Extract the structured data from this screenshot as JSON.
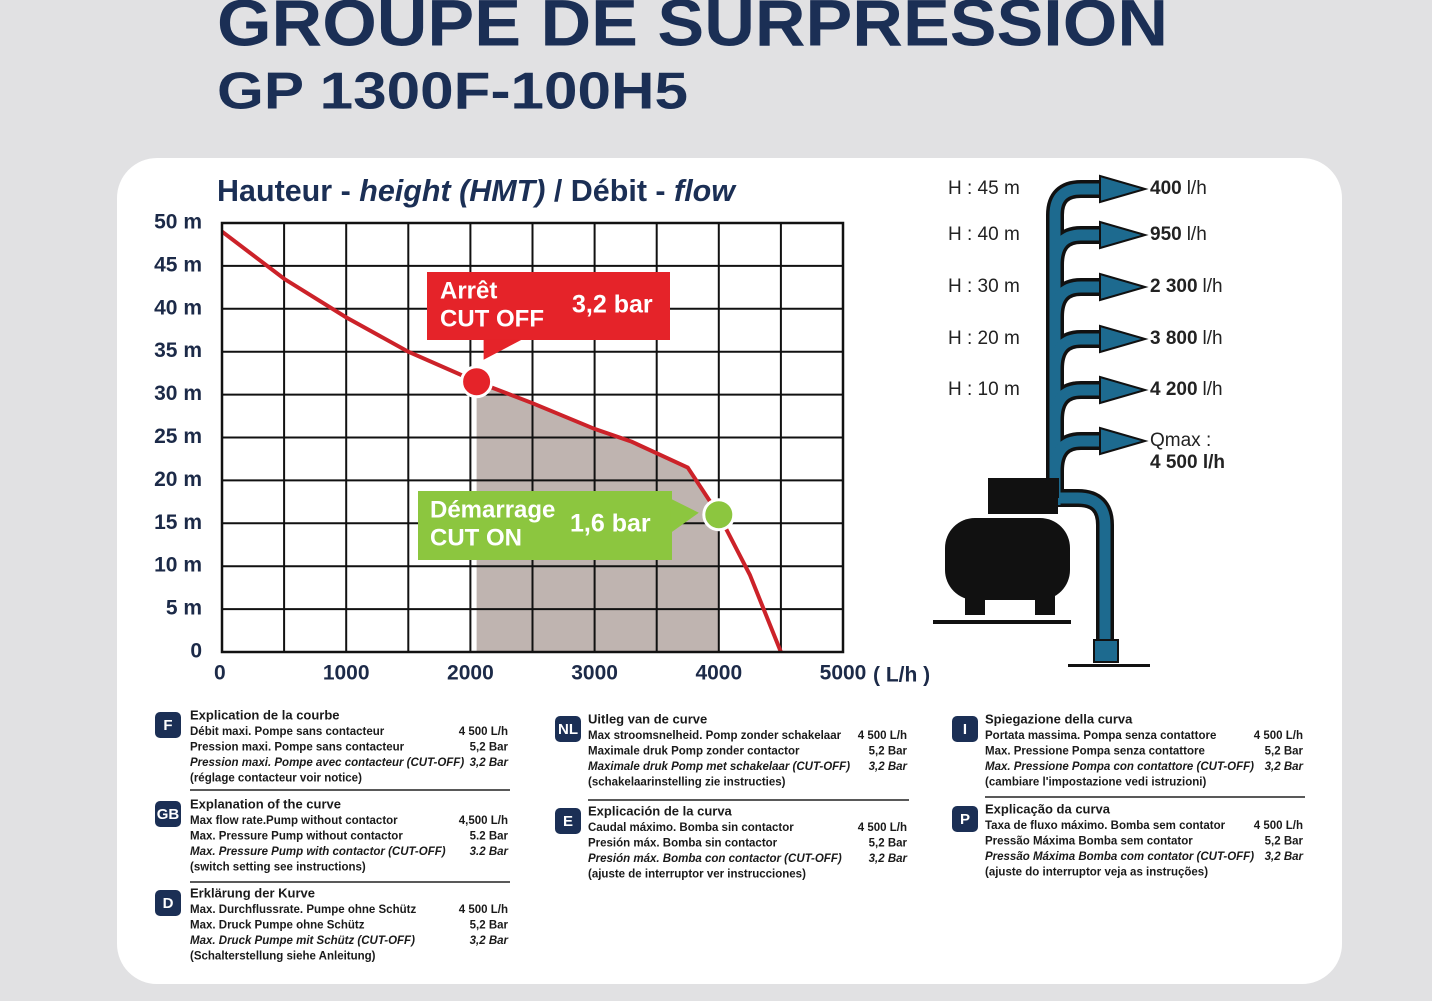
{
  "header": {
    "title": "GROUPE DE SURPRESSION",
    "model": "GP 1300F-100H5"
  },
  "chart_data": {
    "type": "line",
    "title_parts": [
      "Hauteur - ",
      "height (HMT)",
      " / Débit - ",
      "flow"
    ],
    "x": [
      0,
      500,
      1000,
      1500,
      2050,
      2500,
      3000,
      3300,
      3750,
      4000,
      4250,
      4500
    ],
    "values": [
      49,
      43.5,
      39,
      35,
      31.5,
      29,
      26,
      24.5,
      21.5,
      16,
      9,
      0
    ],
    "color": "#cc2229",
    "shade_color": "#bfb4b0",
    "xlim": [
      0,
      5000
    ],
    "ylim": [
      0,
      50
    ],
    "xticks": [
      0,
      1000,
      2000,
      3000,
      4000,
      5000
    ],
    "x_grid": [
      500,
      1500,
      2500,
      3500,
      4500
    ],
    "yticks": [
      0,
      {
        "value": 5,
        "label": "5 m"
      },
      {
        "value": 10,
        "label": "10 m"
      },
      {
        "value": 15,
        "label": "15 m"
      },
      {
        "value": 20,
        "label": "20 m"
      },
      {
        "value": 25,
        "label": "25 m"
      },
      {
        "value": 30,
        "label": "30 m"
      },
      {
        "value": 35,
        "label": "35 m"
      },
      {
        "value": 40,
        "label": "40 m"
      },
      {
        "value": 45,
        "label": "45 m"
      },
      {
        "value": 50,
        "label": "50 m"
      }
    ],
    "x_label": "( L/h )",
    "grid": true,
    "annotations": [
      {
        "lines": [
          "Arrêt",
          "CUT OFF"
        ],
        "pressure": "3,2 bar",
        "color": "#e52329",
        "x": 2050,
        "y": 31.5
      },
      {
        "lines": [
          "Démarrage",
          "CUT ON"
        ],
        "pressure": "1,6 bar",
        "color": "#8cc63f",
        "x": 4000,
        "y": 16
      }
    ]
  },
  "pump_diagram": {
    "rows": [
      {
        "height": "H : 45 m",
        "flow": "400",
        "unit": "l/h"
      },
      {
        "height": "H : 40 m",
        "flow": "950",
        "unit": "l/h"
      },
      {
        "height": "H : 30 m",
        "flow": "2 300",
        "unit": "l/h"
      },
      {
        "height": "H : 20 m",
        "flow": "3 800",
        "unit": "l/h"
      },
      {
        "height": "H : 10 m",
        "flow": "4 200",
        "unit": "l/h"
      }
    ],
    "qmax": {
      "label": "Qmax :",
      "value": "4 500 l/h"
    }
  },
  "explanations": [
    {
      "badge": "F",
      "title": "Explication de la courbe",
      "rows": [
        [
          "Débit maxi. Pompe sans contacteur",
          "4 500 L/h"
        ],
        [
          "Pression maxi. Pompe sans contacteur",
          "5,2 Bar"
        ],
        [
          "Pression maxi. Pompe avec contacteur (CUT-OFF)",
          "3,2 Bar"
        ],
        [
          "(réglage contacteur voir notice)"
        ]
      ]
    },
    {
      "badge": "GB",
      "title": "Explanation of the curve",
      "rows": [
        [
          "Max flow rate.Pump without contactor",
          "4,500 L/h"
        ],
        [
          "Max. Pressure Pump without contactor",
          "5.2 Bar"
        ],
        [
          "Max. Pressure Pump with contactor (CUT-OFF)",
          "3.2 Bar"
        ],
        [
          "(switch setting see instructions)"
        ]
      ]
    },
    {
      "badge": "D",
      "title": "Erklärung der Kurve",
      "rows": [
        [
          "Max. Durchflussrate. Pumpe ohne Schütz",
          "4 500 L/h"
        ],
        [
          "Max. Druck Pumpe ohne Schütz",
          "5,2 Bar"
        ],
        [
          "Max. Druck Pumpe mit Schütz (CUT-OFF)",
          "3,2 Bar"
        ],
        [
          "(Schalterstellung siehe Anleitung)"
        ]
      ]
    },
    {
      "badge": "NL",
      "title": "Uitleg van de curve",
      "rows": [
        [
          "Max stroomsnelheid. Pomp zonder schakelaar",
          "4 500 L/h"
        ],
        [
          "Maximale druk Pomp zonder contactor",
          "5,2 Bar"
        ],
        [
          "Maximale druk Pomp met schakelaar (CUT-OFF)",
          "3,2 Bar"
        ],
        [
          "(schakelaarinstelling zie instructies)"
        ]
      ]
    },
    {
      "badge": "E",
      "title": "Explicación de la curva",
      "rows": [
        [
          "Caudal máximo. Bomba sin contactor",
          "4 500 L/h"
        ],
        [
          "Presión máx. Bomba sin contactor",
          "5,2 Bar"
        ],
        [
          "Presión máx. Bomba con contactor (CUT-OFF)",
          "3,2 Bar"
        ],
        [
          "(ajuste de interruptor ver instrucciones)"
        ]
      ]
    },
    {
      "badge": "I",
      "title": "Spiegazione della curva",
      "rows": [
        [
          "Portata massima. Pompa senza contattore",
          "4 500 L/h"
        ],
        [
          "Max. Pressione Pompa senza contattore",
          "5,2 Bar"
        ],
        [
          "Max. Pressione Pompa con contattore (CUT-OFF)",
          "3,2 Bar"
        ],
        [
          "(cambiare l'impostazione vedi istruzioni)"
        ]
      ]
    },
    {
      "badge": "P",
      "title": "Explicação da curva",
      "rows": [
        [
          "Taxa de fluxo máximo. Bomba sem contator",
          "4 500 L/h"
        ],
        [
          "Pressão Máxima Bomba sem contator",
          "5,2 Bar"
        ],
        [
          "Pressão Máxima Bomba com contator (CUT-OFF)",
          "3,2 Bar"
        ],
        [
          "(ajuste do interruptor veja as instruções)"
        ]
      ]
    }
  ]
}
